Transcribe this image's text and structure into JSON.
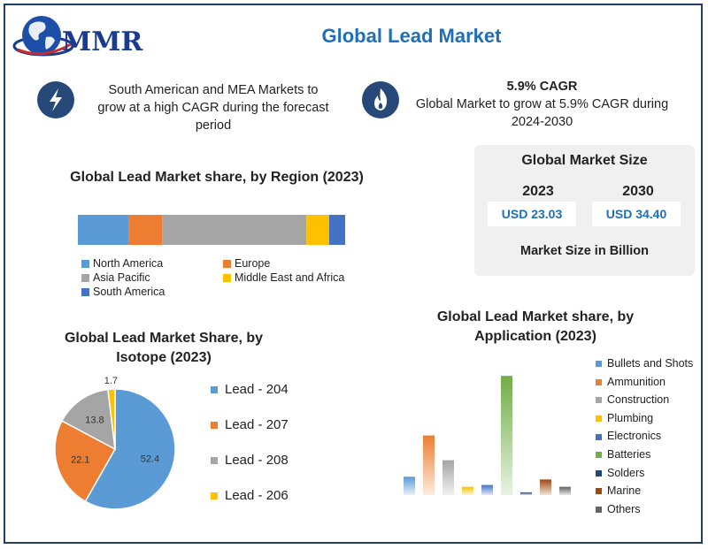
{
  "header": {
    "logo_text": "MMR",
    "title": "Global Lead Market"
  },
  "highlights": {
    "left_text": "South American and MEA Markets to grow at a high CAGR during the forecast period",
    "right_title": "5.9% CAGR",
    "right_text": "Global Market to grow at 5.9% CAGR during 2024-2030"
  },
  "market_size": {
    "title": "Global Market Size",
    "year_a": "2023",
    "year_b": "2030",
    "value_a": "USD 23.03",
    "value_b": "USD 34.40",
    "note": "Market Size in Billion"
  },
  "colors": {
    "north_america": "#5b9bd5",
    "europe": "#ed7d31",
    "asia_pacific": "#a5a5a5",
    "mea": "#ffc000",
    "south_america": "#4472c4",
    "green": "#70ad47",
    "dark_red": "#9e480e",
    "dark_gray": "#636363"
  },
  "chart_data": [
    {
      "type": "bar",
      "orientation": "horizontal-stacked",
      "title": "Global Lead Market share, by Region (2023)",
      "series": [
        {
          "name": "North America",
          "value": 19,
          "color": "#5b9bd5"
        },
        {
          "name": "Europe",
          "value": 12.5,
          "color": "#ed7d31"
        },
        {
          "name": "Asia Pacific",
          "value": 54,
          "color": "#a5a5a5"
        },
        {
          "name": "Middle East and Africa",
          "value": 8.5,
          "color": "#ffc000"
        },
        {
          "name": "South America",
          "value": 6,
          "color": "#4472c4"
        }
      ],
      "legend": [
        "North America",
        "Europe",
        "Asia Pacific",
        "Middle East and Africa",
        "South America"
      ]
    },
    {
      "type": "pie",
      "title": "Global Lead Market Share, by Isotope (2023)",
      "slices": [
        {
          "name": "Lead - 204",
          "value": 52.4,
          "label": "52.4",
          "color": "#5b9bd5"
        },
        {
          "name": "Lead - 207",
          "value": 22.1,
          "label": "22.1",
          "color": "#ed7d31"
        },
        {
          "name": "Lead - 208",
          "value": 13.8,
          "label": "13.8",
          "color": "#a5a5a5"
        },
        {
          "name": "Lead - 206",
          "value": 1.7,
          "label": "1.7",
          "color": "#ffc000"
        }
      ]
    },
    {
      "type": "bar",
      "title": "Global Lead Market share, by Application (2023)",
      "categories": [
        "Bullets and Shots",
        "Ammunition",
        "Construction",
        "Plumbing",
        "Electronics",
        "Batteries",
        "Solders",
        "Marine",
        "Others"
      ],
      "values": [
        20,
        65,
        38,
        9,
        11,
        130,
        3,
        17,
        9
      ],
      "colors": [
        "#5b9bd5",
        "#ed7d31",
        "#a5a5a5",
        "#ffc000",
        "#4472c4",
        "#70ad47",
        "#264478",
        "#9e480e",
        "#636363"
      ],
      "ylim": [
        0,
        135
      ]
    }
  ]
}
